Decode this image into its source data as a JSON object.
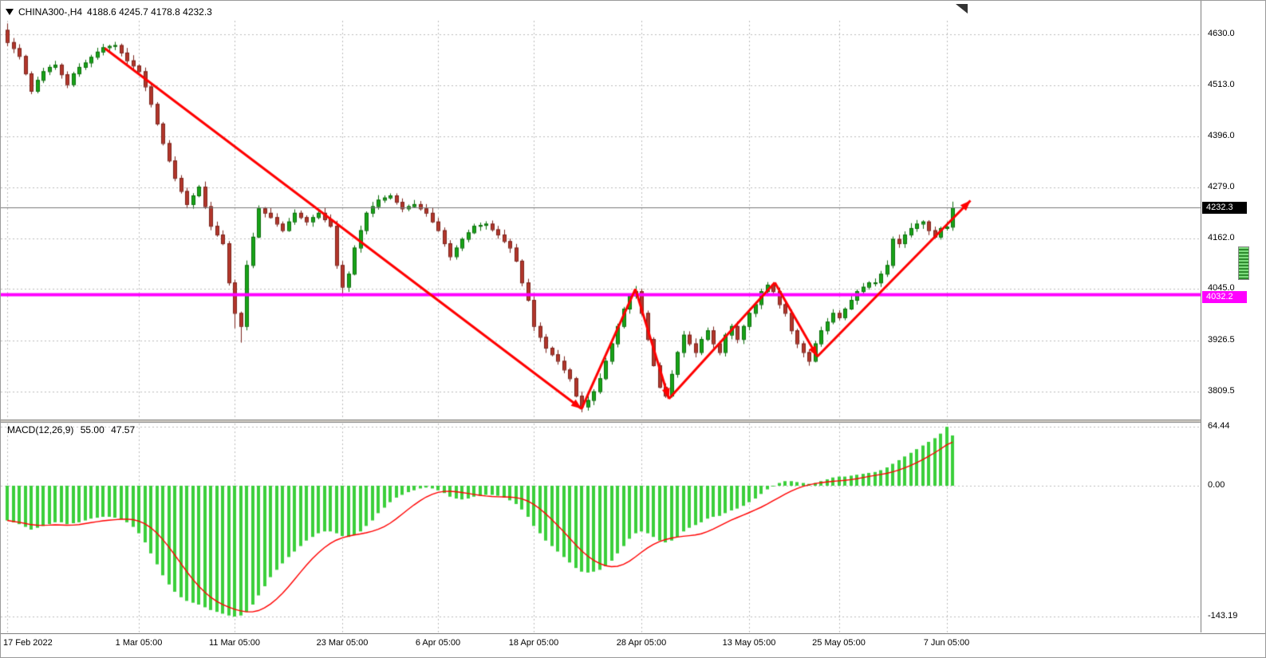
{
  "window": {
    "symbol_period": "CHINA300-,H4",
    "quote_text": "4188.6 4245.7 4178.8 4232.3"
  },
  "chart_data": {
    "type": "candlestick",
    "title": "CHINA300-,H4",
    "timeframe": "H4",
    "quote": {
      "open": 4188.6,
      "high": 4245.7,
      "low": 4178.8,
      "close": 4232.3
    },
    "price_axis": {
      "ticks": [
        {
          "label": "4630.0",
          "value": 4630.0
        },
        {
          "label": "4513.0",
          "value": 4513.0
        },
        {
          "label": "4396.0",
          "value": 4396.0
        },
        {
          "label": "4279.0",
          "value": 4279.0
        },
        {
          "label": "4162.0",
          "value": 4162.0
        },
        {
          "label": "4045.0",
          "value": 4045.0
        },
        {
          "label": "3926.5",
          "value": 3926.5
        },
        {
          "label": "3809.5",
          "value": 3809.5
        }
      ],
      "current_price": 4232.3,
      "current_price_label": "4232.3",
      "hline_price": 4032.2,
      "hline_label": "4032.2"
    },
    "time_axis": {
      "labels": [
        {
          "text": "17 Feb 2022",
          "bar": 0
        },
        {
          "text": "1 Mar 05:00",
          "bar": 22
        },
        {
          "text": "11 Mar 05:00",
          "bar": 38
        },
        {
          "text": "23 Mar 05:00",
          "bar": 56
        },
        {
          "text": "6 Apr 05:00",
          "bar": 72
        },
        {
          "text": "18 Apr 05:00",
          "bar": 88
        },
        {
          "text": "28 Apr 05:00",
          "bar": 106
        },
        {
          "text": "13 May 05:00",
          "bar": 124
        },
        {
          "text": "25 May 05:00",
          "bar": 139
        },
        {
          "text": "7 Jun 05:00",
          "bar": 157
        }
      ]
    },
    "candles": {
      "first_open": 4640,
      "closes": [
        4612,
        4598,
        4580,
        4540,
        4500,
        4525,
        4545,
        4555,
        4560,
        4538,
        4515,
        4540,
        4555,
        4565,
        4578,
        4590,
        4600,
        4603,
        4605,
        4588,
        4570,
        4558,
        4545,
        4510,
        4470,
        4425,
        4380,
        4340,
        4300,
        4270,
        4240,
        4260,
        4280,
        4235,
        4190,
        4170,
        4150,
        4060,
        3990,
        3960,
        4100,
        4165,
        4230,
        4220,
        4210,
        4195,
        4180,
        4200,
        4220,
        4210,
        4200,
        4210,
        4220,
        4205,
        4190,
        4100,
        4050,
        4080,
        4140,
        4180,
        4220,
        4235,
        4250,
        4255,
        4260,
        4245,
        4230,
        4235,
        4240,
        4230,
        4220,
        4200,
        4180,
        4150,
        4120,
        4140,
        4160,
        4175,
        4190,
        4192,
        4195,
        4182,
        4170,
        4155,
        4140,
        4110,
        4060,
        4020,
        3960,
        3935,
        3910,
        3895,
        3880,
        3860,
        3840,
        3800,
        3775,
        3790,
        3810,
        3840,
        3880,
        3920,
        3960,
        4000,
        4030,
        4040,
        3990,
        3930,
        3870,
        3820,
        3800,
        3850,
        3900,
        3940,
        3920,
        3900,
        3930,
        3950,
        3920,
        3900,
        3940,
        3960,
        3930,
        3960,
        3990,
        4010,
        4040,
        4055,
        4040,
        4010,
        3990,
        3950,
        3920,
        3900,
        3880,
        3920,
        3950,
        3970,
        3990,
        3980,
        4000,
        4020,
        4040,
        4050,
        4060,
        4060,
        4080,
        4100,
        4160,
        4150,
        4170,
        4185,
        4195,
        4200,
        4180,
        4165,
        4185,
        4188,
        4232.3
      ],
      "wick_overrides": {
        "0": {
          "high": 4655
        },
        "38": {
          "low": 3955
        },
        "39": {
          "low": 3922
        },
        "56": {
          "low": 4035
        },
        "96": {
          "low": 3762
        },
        "105": {
          "high": 4052
        },
        "158": {
          "high": 4245.7,
          "low": 4178.8
        }
      }
    },
    "macd": {
      "label": "MACD(12,26,9)",
      "value": "55.00",
      "signal": "47.57",
      "ticks": [
        {
          "label": "64.44",
          "value": 64.44
        },
        {
          "label": "0.00",
          "value": 0
        },
        {
          "label": "-143.19",
          "value": -143.19
        }
      ],
      "histogram": [
        -38,
        -40,
        -42,
        -45,
        -48,
        -46,
        -44,
        -42,
        -40,
        -40,
        -42,
        -41,
        -40,
        -38,
        -36,
        -35,
        -34,
        -34,
        -35,
        -37,
        -40,
        -45,
        -52,
        -62,
        -74,
        -86,
        -98,
        -108,
        -116,
        -122,
        -126,
        -128,
        -130,
        -133,
        -136,
        -138,
        -140,
        -142,
        -143.19,
        -142,
        -138,
        -130,
        -120,
        -110,
        -100,
        -92,
        -85,
        -78,
        -72,
        -66,
        -60,
        -56,
        -52,
        -50,
        -50,
        -52,
        -55,
        -56,
        -54,
        -50,
        -44,
        -38,
        -30,
        -24,
        -18,
        -13,
        -10,
        -7,
        -5,
        -3,
        -2,
        -3,
        -5,
        -8,
        -12,
        -14,
        -15,
        -14,
        -12,
        -11,
        -10,
        -10,
        -11,
        -13,
        -16,
        -20,
        -26,
        -34,
        -44,
        -52,
        -60,
        -66,
        -72,
        -78,
        -84,
        -90,
        -94,
        -95,
        -94,
        -92,
        -88,
        -82,
        -74,
        -66,
        -58,
        -52,
        -50,
        -52,
        -56,
        -60,
        -62,
        -60,
        -56,
        -50,
        -46,
        -43,
        -40,
        -36,
        -34,
        -33,
        -30,
        -27,
        -25,
        -22,
        -18,
        -14,
        -9,
        -4,
        0,
        3,
        5,
        5,
        4,
        3,
        2,
        3,
        5,
        7,
        9,
        10,
        10,
        11,
        12,
        13,
        14,
        15,
        17,
        20,
        24,
        28,
        32,
        36,
        40,
        44,
        48,
        52,
        57,
        64.44,
        55
      ]
    },
    "trend_arrows": [
      {
        "from": [
          16.3,
          4598
        ],
        "to": [
          96,
          3770
        ],
        "head": true
      },
      {
        "from": [
          96,
          3770
        ],
        "to": [
          105,
          4045
        ],
        "head": false
      },
      {
        "from": [
          105,
          4045
        ],
        "to": [
          110.6,
          3793
        ],
        "head": true
      },
      {
        "from": [
          110.6,
          3793
        ],
        "to": [
          128.3,
          4060
        ],
        "head": false
      },
      {
        "from": [
          128.3,
          4060
        ],
        "to": [
          135.4,
          3890
        ],
        "head": true
      },
      {
        "from": [
          135.4,
          3890
        ],
        "to": [
          161,
          4248
        ],
        "head": true
      }
    ],
    "colors": {
      "up_fill": "#18a418",
      "up_stroke": "#0b6e0b",
      "down_fill": "#b3362b",
      "down_stroke": "#7c241d",
      "macd_hist": "#3bcf3b",
      "signal_line": "#ff0000",
      "arrow": "#ff0000",
      "hline": "#ff00ff",
      "grid": "#bcbcbc",
      "current_price_line": "#777777",
      "frame": "#808080"
    }
  }
}
